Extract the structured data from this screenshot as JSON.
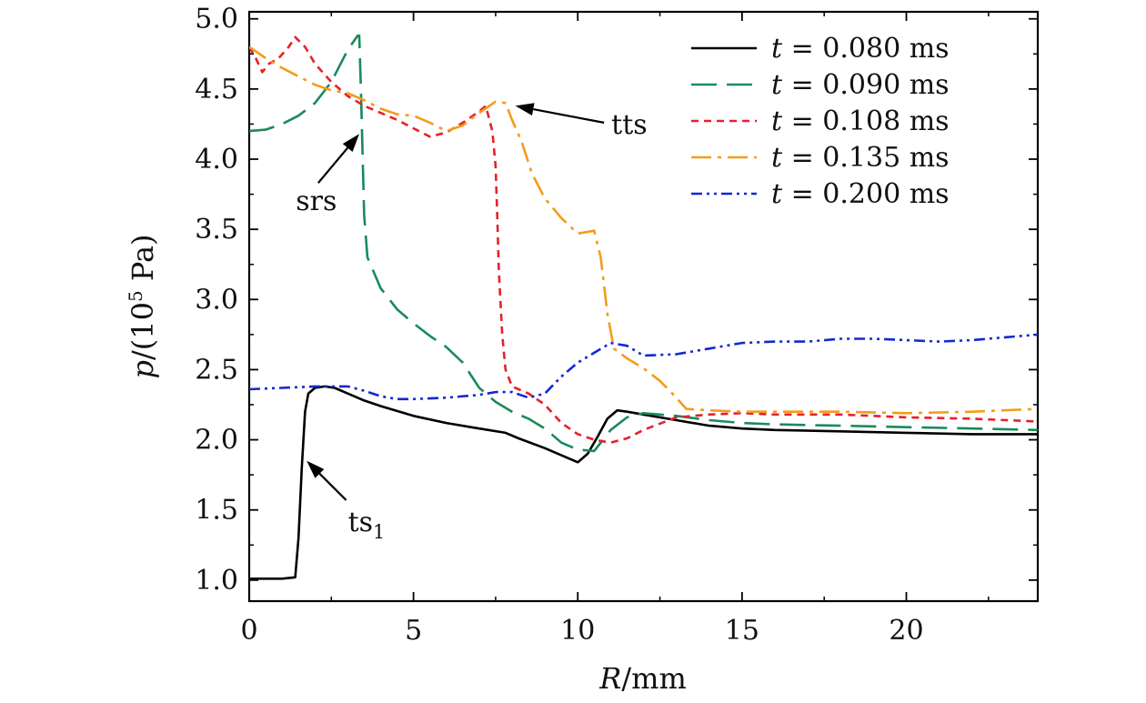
{
  "chart_data": {
    "type": "line",
    "xlabel_italic": "R",
    "xlabel_rest": "/mm",
    "ylabel_italic": "p",
    "ylabel_rest_a": "/(10",
    "ylabel_sup": "5",
    "ylabel_rest_b": " Pa)",
    "xlim": [
      0,
      24
    ],
    "ylim": [
      0.85,
      5.05
    ],
    "xticks": [
      0,
      5,
      10,
      15,
      20
    ],
    "xtick_labels": [
      "0",
      "5",
      "10",
      "15",
      "20"
    ],
    "yticks": [
      1.0,
      1.5,
      2.0,
      2.5,
      3.0,
      3.5,
      4.0,
      4.5,
      5.0
    ],
    "ytick_labels": [
      "1.0",
      "1.5",
      "2.0",
      "2.5",
      "3.0",
      "3.5",
      "4.0",
      "4.5",
      "5.0"
    ],
    "legend_position": "top-right",
    "series": [
      {
        "name_var": "t",
        "name_rest": " = 0.080 ms",
        "color": "#000000",
        "dash": "",
        "x": [
          0,
          0.5,
          1.0,
          1.4,
          1.5,
          1.6,
          1.7,
          1.8,
          2.0,
          2.3,
          2.6,
          3.0,
          3.5,
          4.0,
          5.0,
          6.0,
          7.0,
          7.8,
          8.2,
          9.0,
          9.8,
          10.0,
          10.3,
          10.6,
          10.9,
          11.2,
          11.5,
          12.0,
          13.0,
          14.0,
          15.0,
          16.0,
          18.0,
          20.0,
          22.0,
          24.0
        ],
        "y": [
          1.01,
          1.01,
          1.01,
          1.02,
          1.3,
          1.8,
          2.2,
          2.33,
          2.37,
          2.38,
          2.37,
          2.33,
          2.28,
          2.24,
          2.17,
          2.12,
          2.08,
          2.05,
          2.01,
          1.94,
          1.86,
          1.84,
          1.9,
          2.02,
          2.15,
          2.21,
          2.2,
          2.18,
          2.14,
          2.1,
          2.08,
          2.07,
          2.06,
          2.05,
          2.04,
          2.04
        ]
      },
      {
        "name_var": "t",
        "name_rest": " = 0.090 ms",
        "color": "#1a8a5a",
        "dash": "28,11",
        "x": [
          0,
          0.5,
          1.0,
          1.5,
          2.0,
          2.5,
          3.0,
          3.3,
          3.35,
          3.4,
          3.45,
          3.5,
          3.6,
          4.0,
          4.5,
          5.0,
          5.5,
          6.0,
          6.5,
          7.0,
          7.5,
          8.0,
          8.5,
          9.0,
          9.5,
          10.0,
          10.5,
          11.0,
          11.5,
          12.0,
          13.0,
          14.0,
          15.0,
          16.0,
          18.0,
          20.0,
          22.0,
          24.0
        ],
        "y": [
          4.2,
          4.21,
          4.25,
          4.31,
          4.4,
          4.55,
          4.78,
          4.88,
          4.88,
          4.5,
          4.05,
          3.6,
          3.3,
          3.08,
          2.93,
          2.83,
          2.74,
          2.66,
          2.55,
          2.37,
          2.27,
          2.2,
          2.15,
          2.08,
          1.98,
          1.93,
          1.92,
          2.07,
          2.16,
          2.19,
          2.17,
          2.14,
          2.12,
          2.11,
          2.1,
          2.09,
          2.08,
          2.07
        ]
      },
      {
        "name_var": "t",
        "name_rest": " = 0.108 ms",
        "color": "#e8202a",
        "dash": "8,6",
        "x": [
          0,
          0.2,
          0.4,
          0.6,
          0.9,
          1.2,
          1.4,
          1.7,
          2.0,
          2.5,
          3.0,
          3.5,
          4.0,
          4.5,
          5.0,
          5.5,
          6.0,
          6.5,
          7.0,
          7.2,
          7.4,
          7.5,
          7.55,
          7.6,
          7.7,
          7.8,
          8.0,
          8.5,
          9.0,
          9.5,
          10.0,
          10.5,
          11.0,
          11.5,
          12.0,
          13.0,
          14.0,
          15.0,
          16.0,
          18.0,
          20.0,
          22.0,
          24.0
        ],
        "y": [
          4.8,
          4.72,
          4.62,
          4.68,
          4.72,
          4.8,
          4.87,
          4.8,
          4.68,
          4.55,
          4.45,
          4.38,
          4.33,
          4.28,
          4.22,
          4.16,
          4.19,
          4.26,
          4.34,
          4.38,
          4.2,
          3.95,
          3.6,
          3.2,
          2.75,
          2.5,
          2.38,
          2.33,
          2.25,
          2.12,
          2.04,
          2.0,
          1.98,
          2.01,
          2.07,
          2.16,
          2.18,
          2.19,
          2.18,
          2.18,
          2.16,
          2.15,
          2.13
        ]
      },
      {
        "name_var": "t",
        "name_rest": " = 0.135 ms",
        "color": "#f39c1a",
        "dash": "22,7,4,7",
        "x": [
          0,
          0.5,
          1.0,
          1.5,
          2.0,
          2.5,
          3.0,
          3.5,
          4.0,
          4.5,
          5.0,
          5.5,
          6.0,
          6.5,
          7.0,
          7.5,
          7.8,
          8.0,
          8.3,
          8.6,
          9.0,
          9.5,
          10.0,
          10.5,
          10.7,
          10.9,
          11.1,
          11.5,
          12.0,
          12.5,
          13.0,
          13.3,
          14.0,
          15.0,
          16.0,
          18.0,
          20.0,
          22.0,
          24.0
        ],
        "y": [
          4.8,
          4.72,
          4.65,
          4.59,
          4.53,
          4.49,
          4.47,
          4.42,
          4.36,
          4.32,
          4.31,
          4.26,
          4.2,
          4.24,
          4.33,
          4.41,
          4.4,
          4.28,
          4.12,
          3.9,
          3.72,
          3.58,
          3.47,
          3.49,
          3.3,
          2.9,
          2.65,
          2.58,
          2.51,
          2.42,
          2.3,
          2.22,
          2.21,
          2.2,
          2.2,
          2.2,
          2.19,
          2.2,
          2.22
        ]
      },
      {
        "name_var": "t",
        "name_rest": " = 0.200 ms",
        "color": "#1428d0",
        "dash": "12,5,3,5,3,5",
        "x": [
          0,
          1.0,
          2.0,
          3.0,
          3.5,
          4.0,
          4.5,
          5.0,
          6.0,
          7.0,
          7.5,
          8.0,
          8.5,
          9.0,
          9.5,
          10.0,
          10.5,
          11.0,
          11.5,
          12.0,
          13.0,
          14.0,
          15.0,
          16.0,
          17.0,
          18.0,
          19.0,
          20.0,
          21.0,
          22.0,
          23.0,
          24.0
        ],
        "y": [
          2.36,
          2.37,
          2.38,
          2.38,
          2.35,
          2.31,
          2.29,
          2.29,
          2.3,
          2.32,
          2.34,
          2.34,
          2.3,
          2.33,
          2.45,
          2.55,
          2.62,
          2.69,
          2.67,
          2.6,
          2.61,
          2.65,
          2.69,
          2.7,
          2.7,
          2.72,
          2.72,
          2.71,
          2.7,
          2.71,
          2.73,
          2.75
        ]
      }
    ],
    "annotations": [
      {
        "label": "tts",
        "sub": "",
        "tip_x": 8.1,
        "tip_y": 4.38,
        "tail_x": 10.8,
        "tail_y": 4.26
      },
      {
        "label": "srs",
        "sub": "",
        "tip_x": 3.35,
        "tip_y": 4.18,
        "tail_x": 2.1,
        "tail_y": 3.83
      },
      {
        "label": "ts",
        "sub": "1",
        "tip_x": 1.75,
        "tip_y": 1.85,
        "tail_x": 2.95,
        "tail_y": 1.57
      }
    ]
  }
}
